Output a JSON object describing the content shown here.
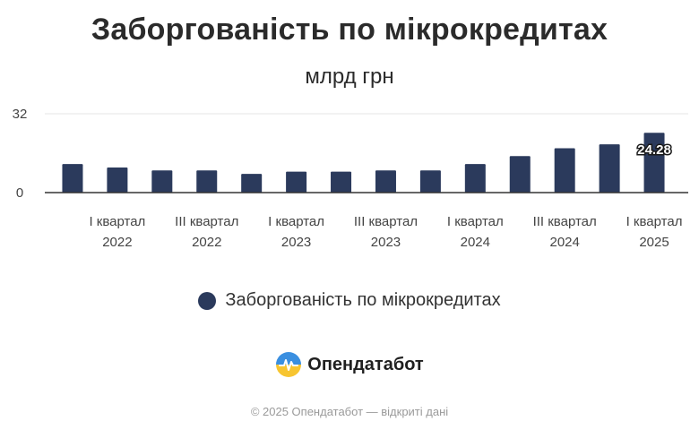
{
  "chart_data": {
    "type": "bar",
    "title": "Заборгованість по мікрокредитах",
    "subtitle": "млрд грн",
    "ylim": [
      0,
      32
    ],
    "yticks": [
      "0",
      "32"
    ],
    "grid": true,
    "legend_position": "bottom",
    "categories": [
      "",
      "I квартал 2022",
      "",
      "III квартал 2022",
      "",
      "I квартал 2023",
      "",
      "III квартал 2023",
      "",
      "I квартал 2024",
      "",
      "III квартал 2024",
      "",
      "I квартал 2025"
    ],
    "tick_labels": [
      {
        "line1": "I квартал",
        "line2": "2022"
      },
      {
        "line1": "III квартал",
        "line2": "2022"
      },
      {
        "line1": "I квартал",
        "line2": "2023"
      },
      {
        "line1": "III квартал",
        "line2": "2023"
      },
      {
        "line1": "I квартал",
        "line2": "2024"
      },
      {
        "line1": "III квартал",
        "line2": "2024"
      },
      {
        "line1": "I квартал",
        "line2": "2025"
      }
    ],
    "series": [
      {
        "name": "Заборгованість по мікрокредитах",
        "color": "#2b3a5c",
        "values": [
          11.6,
          10.2,
          9.0,
          9.0,
          7.6,
          8.5,
          8.5,
          9.0,
          9.0,
          11.6,
          14.8,
          18.0,
          19.6,
          24.28
        ]
      }
    ],
    "data_labels": [
      {
        "index": 13,
        "text": "24.28"
      }
    ]
  },
  "brand": {
    "name": "Опендатабот",
    "icon": "opendatabot-logo-icon"
  },
  "footer": {
    "text": "© 2025 Опендатабот — відкриті дані"
  }
}
